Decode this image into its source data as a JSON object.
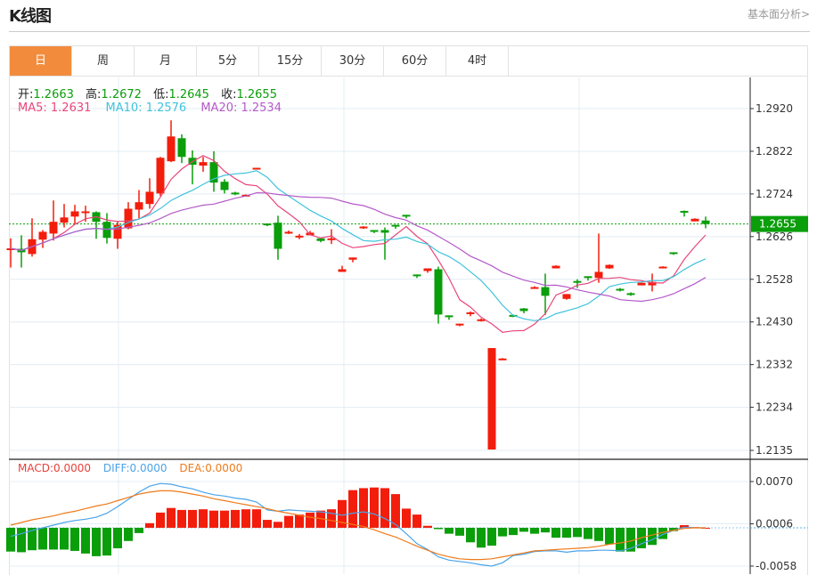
{
  "header": {
    "title": "K线图",
    "fundamental_link": "基本面分析>"
  },
  "tabs": [
    {
      "label": "日",
      "active": true
    },
    {
      "label": "周"
    },
    {
      "label": "月"
    },
    {
      "label": "5分"
    },
    {
      "label": "15分"
    },
    {
      "label": "30分"
    },
    {
      "label": "60分"
    },
    {
      "label": "4时"
    }
  ],
  "legend": {
    "open_label": "开:",
    "open": "1.2663",
    "high_label": "高:",
    "high": "1.2672",
    "low_label": "低:",
    "low": "1.2645",
    "close_label": "收:",
    "close": "1.2655",
    "ma5": "MA5: 1.2631",
    "ma10": "MA10: 1.2576",
    "ma20": "MA20: 1.2534"
  },
  "macd_legend": {
    "macd": "MACD:0.0000",
    "diff": "DIFF:0.0000",
    "dea": "DEA:0.0000"
  },
  "colors": {
    "up": "#f31d0c",
    "down": "#0a9e0a",
    "ma5": "#e9467a",
    "ma10": "#3fc3dc",
    "ma20": "#b45ac9",
    "diff": "#4aa3e8",
    "dea": "#f07a1a",
    "accent": "#f28c3c",
    "current": "#0a9e0a"
  },
  "chart_data": {
    "type": "candlestick",
    "current_price": "1.2655",
    "price_ticks": [
      "1.2920",
      "1.2822",
      "1.2724",
      "1.2626",
      "1.2528",
      "1.2430",
      "1.2332",
      "1.2234",
      "1.2135"
    ],
    "ylim": [
      1.2135,
      1.292
    ],
    "macd_ticks": [
      "0.0070",
      "0.0006",
      "-0.0058"
    ],
    "macd_ylim": [
      -0.0058,
      0.007
    ],
    "ma_periods": [
      5,
      10,
      20
    ],
    "ohlc": [
      [
        1.2598,
        1.2622,
        1.2555,
        1.2599
      ],
      [
        1.2598,
        1.2629,
        1.2555,
        1.259
      ],
      [
        1.2586,
        1.2668,
        1.258,
        1.262
      ],
      [
        1.2619,
        1.2641,
        1.26,
        1.2637
      ],
      [
        1.2633,
        1.2709,
        1.2617,
        1.266
      ],
      [
        1.2658,
        1.2701,
        1.2647,
        1.267
      ],
      [
        1.2672,
        1.2699,
        1.2653,
        1.2684
      ],
      [
        1.2683,
        1.2697,
        1.266,
        1.2684
      ],
      [
        1.2682,
        1.2684,
        1.2621,
        1.266
      ],
      [
        1.266,
        1.268,
        1.261,
        1.2623
      ],
      [
        1.2621,
        1.2662,
        1.2598,
        1.2653
      ],
      [
        1.2645,
        1.2705,
        1.2643,
        1.269
      ],
      [
        1.2688,
        1.2733,
        1.2668,
        1.2705
      ],
      [
        1.2701,
        1.276,
        1.269,
        1.2729
      ],
      [
        1.2725,
        1.2809,
        1.2719,
        1.2807
      ],
      [
        1.2799,
        1.2893,
        1.2797,
        1.2856
      ],
      [
        1.2852,
        1.2861,
        1.2795,
        1.2809
      ],
      [
        1.2807,
        1.2824,
        1.2746,
        1.2791
      ],
      [
        1.2789,
        1.2809,
        1.2775,
        1.2797
      ],
      [
        1.2797,
        1.2822,
        1.2729,
        1.275
      ],
      [
        1.2752,
        1.2758,
        1.2725,
        1.2733
      ],
      [
        1.2727,
        1.2729,
        1.2721,
        1.2725
      ],
      [
        1.2719,
        1.2723,
        1.2719,
        1.2722
      ],
      [
        1.2782,
        1.2784,
        1.2782,
        1.2784
      ],
      [
        1.2656,
        1.2656,
        1.265,
        1.2654
      ],
      [
        1.2658,
        1.2674,
        1.2573,
        1.2598
      ],
      [
        1.2634,
        1.264,
        1.2632,
        1.2637
      ],
      [
        1.2624,
        1.2632,
        1.262,
        1.2628
      ],
      [
        1.2629,
        1.2639,
        1.2629,
        1.2635
      ],
      [
        1.2622,
        1.2623,
        1.2613,
        1.2616
      ],
      [
        1.2618,
        1.2643,
        1.2609,
        1.2622
      ],
      [
        1.2545,
        1.2559,
        1.2545,
        1.2551
      ],
      [
        1.2573,
        1.2578,
        1.2567,
        1.2578
      ],
      [
        1.2647,
        1.265,
        1.2644,
        1.2649
      ],
      [
        1.2641,
        1.2641,
        1.2634,
        1.2638
      ],
      [
        1.2641,
        1.2647,
        1.2573,
        1.2635
      ],
      [
        1.2653,
        1.2653,
        1.2644,
        1.265
      ],
      [
        1.2676,
        1.2676,
        1.2668,
        1.2674
      ],
      [
        1.2539,
        1.2539,
        1.2531,
        1.2535
      ],
      [
        1.2547,
        1.2553,
        1.2543,
        1.2553
      ],
      [
        1.2551,
        1.2557,
        1.2426,
        1.2447
      ],
      [
        1.2445,
        1.2445,
        1.2435,
        1.2443
      ],
      [
        1.2422,
        1.2426,
        1.242,
        1.2426
      ],
      [
        1.2448,
        1.2454,
        1.2443,
        1.2452
      ],
      [
        1.2432,
        1.2438,
        1.2431,
        1.2436
      ],
      [
        1.2137,
        1.237,
        1.2137,
        1.237
      ],
      [
        1.2344,
        1.2347,
        1.2344,
        1.2346
      ],
      [
        1.2446,
        1.2447,
        1.2441,
        1.2444
      ],
      [
        1.2461,
        1.2462,
        1.245,
        1.2455
      ],
      [
        1.2508,
        1.2512,
        1.2506,
        1.251
      ],
      [
        1.251,
        1.2541,
        1.2446,
        1.249
      ],
      [
        1.2553,
        1.256,
        1.2553,
        1.2559
      ],
      [
        1.2483,
        1.2494,
        1.2481,
        1.2494
      ],
      [
        1.2524,
        1.2528,
        1.2508,
        1.252
      ],
      [
        1.2535,
        1.2535,
        1.2525,
        1.2531
      ],
      [
        1.2531,
        1.2633,
        1.252,
        1.2545
      ],
      [
        1.2553,
        1.2562,
        1.2552,
        1.2561
      ],
      [
        1.2506,
        1.2508,
        1.25,
        1.2504
      ],
      [
        1.2496,
        1.2498,
        1.249,
        1.2494
      ],
      [
        1.2514,
        1.252,
        1.2514,
        1.252
      ],
      [
        1.2514,
        1.2541,
        1.25,
        1.2522
      ],
      [
        1.2553,
        1.2558,
        1.2553,
        1.2557
      ],
      [
        1.259,
        1.259,
        1.2584,
        1.2586
      ],
      [
        1.2685,
        1.2686,
        1.2672,
        1.2684
      ],
      [
        1.2661,
        1.2668,
        1.2661,
        1.2667
      ],
      [
        1.2663,
        1.2672,
        1.2645,
        1.2655
      ]
    ],
    "macd_hist": [
      -0.0036,
      -0.0037,
      -0.0034,
      -0.0033,
      -0.0033,
      -0.0033,
      -0.0035,
      -0.0039,
      -0.0043,
      -0.0042,
      -0.0031,
      -0.002,
      -0.0008,
      0.0007,
      0.0023,
      0.003,
      0.0027,
      0.0027,
      0.0028,
      0.0026,
      0.0026,
      0.0027,
      0.0028,
      0.0028,
      0.0012,
      0.0009,
      0.0018,
      0.002,
      0.0023,
      0.0026,
      0.0028,
      0.0042,
      0.0057,
      0.006,
      0.0061,
      0.006,
      0.0051,
      0.0029,
      0.002,
      0.0003,
      -0.0002,
      -0.0009,
      -0.0012,
      -0.0022,
      -0.003,
      -0.0027,
      -0.0013,
      -0.0011,
      -0.0006,
      -0.0009,
      -0.0007,
      -0.0015,
      -0.0015,
      -0.0014,
      -0.0017,
      -0.002,
      -0.0025,
      -0.0036,
      -0.0036,
      -0.0031,
      -0.0026,
      -0.0017,
      -0.0005,
      0.0004,
      0.0001,
      0.0
    ],
    "diff": [
      -0.0013,
      -0.0009,
      -0.0004,
      0.0,
      0.0004,
      0.0008,
      0.0011,
      0.0013,
      0.0016,
      0.0022,
      0.0032,
      0.0043,
      0.0054,
      0.0063,
      0.0067,
      0.0066,
      0.0062,
      0.0059,
      0.0054,
      0.005,
      0.0048,
      0.0045,
      0.0043,
      0.0039,
      0.0027,
      0.0025,
      0.0027,
      0.0026,
      0.0025,
      0.0024,
      0.0022,
      0.0019,
      0.0022,
      0.0024,
      0.0021,
      0.0014,
      0.0005,
      -0.0009,
      -0.0024,
      -0.0033,
      -0.0044,
      -0.0049,
      -0.0051,
      -0.0053,
      -0.0056,
      -0.0058,
      -0.0053,
      -0.0042,
      -0.004,
      -0.0036,
      -0.0035,
      -0.0035,
      -0.0037,
      -0.0035,
      -0.0035,
      -0.0034,
      -0.0034,
      -0.0035,
      -0.0031,
      -0.0024,
      -0.0018,
      -0.001,
      -0.0004,
      0.0001,
      0.0,
      0.0
    ],
    "dea": [
      0.0004,
      0.0008,
      0.0012,
      0.0015,
      0.0018,
      0.0022,
      0.0025,
      0.0029,
      0.0033,
      0.0036,
      0.0041,
      0.0046,
      0.0051,
      0.0054,
      0.0056,
      0.0056,
      0.0054,
      0.0051,
      0.0048,
      0.0044,
      0.0041,
      0.0038,
      0.0035,
      0.0032,
      0.0029,
      0.0025,
      0.0022,
      0.0019,
      0.0016,
      0.0014,
      0.0011,
      0.0008,
      0.0005,
      0.0002,
      -0.0003,
      -0.0009,
      -0.0014,
      -0.0021,
      -0.0028,
      -0.0034,
      -0.004,
      -0.0044,
      -0.0047,
      -0.0048,
      -0.0048,
      -0.0047,
      -0.0044,
      -0.0041,
      -0.0038,
      -0.0035,
      -0.0034,
      -0.0033,
      -0.0032,
      -0.0031,
      -0.003,
      -0.0028,
      -0.0025,
      -0.0023,
      -0.002,
      -0.0015,
      -0.0011,
      -0.0007,
      -0.0004,
      -0.0001,
      0.0,
      0.0
    ]
  }
}
